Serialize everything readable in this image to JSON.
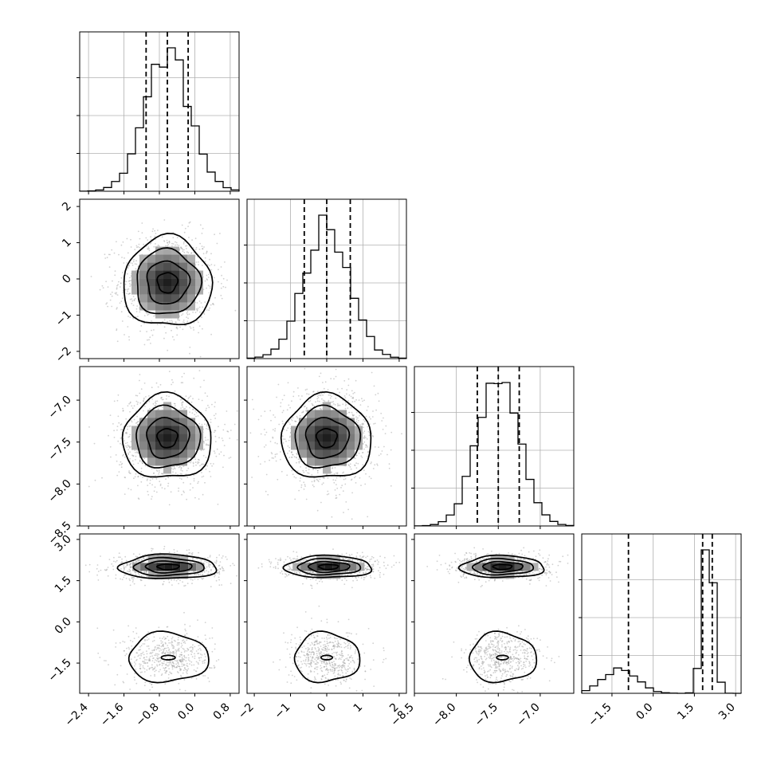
{
  "chart_data": {
    "type": "corner",
    "n_parameters": 4,
    "parameters": [
      {
        "range": [
          -2.6,
          1.0
        ],
        "ticks": [
          -2.4,
          -1.6,
          -0.8,
          0.0,
          0.8
        ],
        "tick_labels": [
          "−2.4",
          "−1.6",
          "−0.8",
          "0.0",
          "0.8"
        ],
        "quantiles": [
          -1.1,
          -0.62,
          -0.15
        ],
        "histogram": {
          "type": "gaussian",
          "mean": -0.62,
          "sd": 0.5,
          "bins": 20
        }
      },
      {
        "range": [
          -2.2,
          2.2
        ],
        "ticks": [
          -2,
          -1,
          0,
          1,
          2
        ],
        "tick_labels": [
          "−2",
          "−1",
          "0",
          "1",
          "2"
        ],
        "quantiles": [
          -0.62,
          0.0,
          0.65
        ],
        "histogram": {
          "type": "gaussian",
          "mean": 0.0,
          "sd": 0.62,
          "bins": 20
        }
      },
      {
        "range": [
          -8.5,
          -6.6
        ],
        "ticks": [
          -8.5,
          -8.0,
          -7.5,
          -7.0
        ],
        "tick_labels": [
          "−8.5",
          "−8.0",
          "−7.5",
          "−7.0"
        ],
        "quantiles": [
          -7.75,
          -7.5,
          -7.25
        ],
        "histogram": {
          "type": "gaussian",
          "mean": -7.5,
          "sd": 0.25,
          "bins": 20
        }
      },
      {
        "range": [
          -2.6,
          3.2
        ],
        "ticks": [
          -1.5,
          0.0,
          1.5,
          3.0
        ],
        "tick_labels": [
          "−1.5",
          "0.0",
          "1.5",
          "3.0"
        ],
        "quantiles": [
          -0.9,
          1.8,
          2.15
        ],
        "histogram": {
          "type": "bimodal",
          "components": [
            {
              "mean": -1.2,
              "sd": 0.6,
              "weight": 0.3
            },
            {
              "mean": 2.0,
              "sd": 0.2,
              "weight": 0.7
            }
          ],
          "bins": 20
        }
      }
    ],
    "pair_panels": [
      {
        "row": 1,
        "col": 0,
        "center": [
          -0.62,
          -0.1
        ],
        "spread": [
          0.5,
          0.62
        ]
      },
      {
        "row": 2,
        "col": 0,
        "center": [
          -0.62,
          -7.45
        ],
        "spread": [
          0.5,
          0.25
        ]
      },
      {
        "row": 2,
        "col": 1,
        "center": [
          0.0,
          -7.45
        ],
        "spread": [
          0.62,
          0.25
        ]
      },
      {
        "row": 3,
        "col": 0,
        "modes": [
          {
            "center": [
              -0.6,
              2.0
            ],
            "spread": [
              0.55,
              0.22
            ]
          },
          {
            "center": [
              -0.6,
              -1.3
            ],
            "spread": [
              0.45,
              0.45
            ]
          }
        ]
      },
      {
        "row": 3,
        "col": 1,
        "modes": [
          {
            "center": [
              0.05,
              2.0
            ],
            "spread": [
              0.6,
              0.2
            ]
          },
          {
            "center": [
              0.0,
              -1.3
            ],
            "spread": [
              0.45,
              0.45
            ]
          }
        ]
      },
      {
        "row": 3,
        "col": 2,
        "modes": [
          {
            "center": [
              -7.45,
              2.0
            ],
            "spread": [
              0.25,
              0.2
            ]
          },
          {
            "center": [
              -7.45,
              -1.3
            ],
            "spread": [
              0.2,
              0.45
            ]
          }
        ]
      }
    ],
    "grid": true
  }
}
